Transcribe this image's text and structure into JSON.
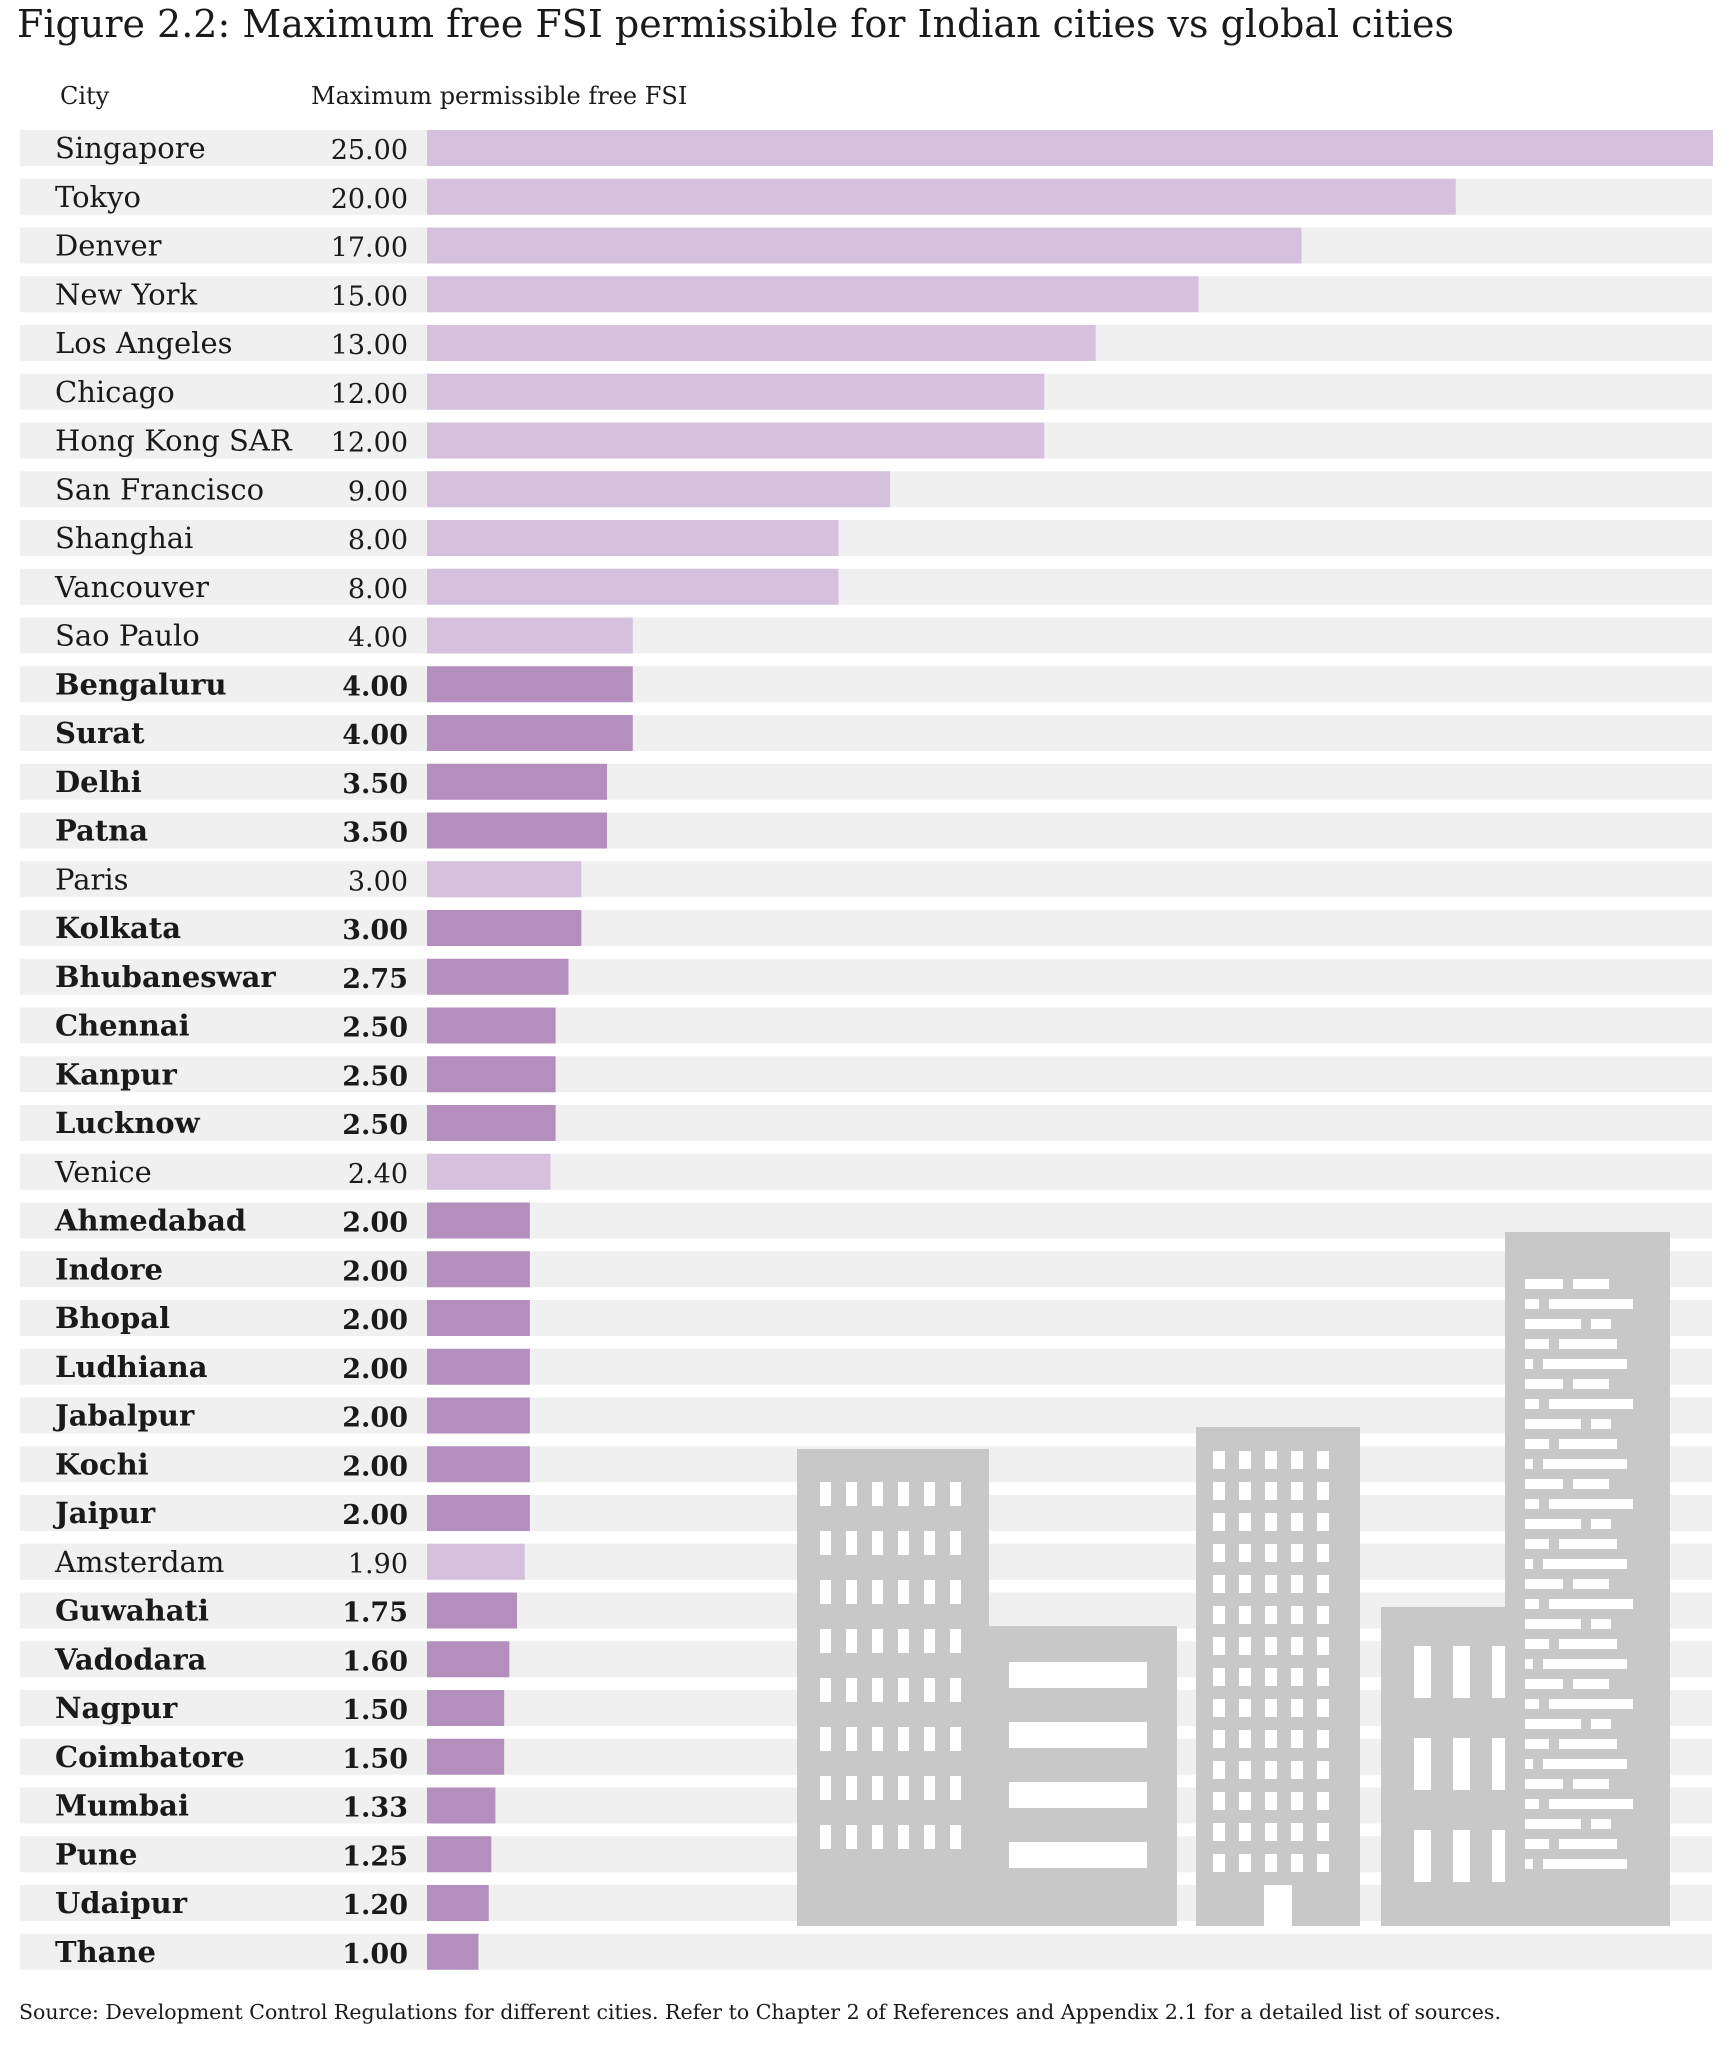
{
  "title": "Figure 2.2: Maximum free FSI permissible for Indian cities vs global cities",
  "column_headers": {
    "city": "City",
    "value": "Maximum permissible free FSI"
  },
  "source": "Source: Development Control Regulations for different cities. Refer to Chapter 2 of References and Appendix 2.1 for a detailed list of sources.",
  "colors": {
    "global_bar": "#d5c0de",
    "indian_bar": "#b48fbe",
    "row_band": "#f0f0f0",
    "buildings": "#c8c8c8"
  },
  "icons": [
    "city-skyline-icon"
  ],
  "chart_data": {
    "type": "bar",
    "orientation": "horizontal",
    "xlim": [
      0,
      25
    ],
    "categories": [
      "Singapore",
      "Tokyo",
      "Denver",
      "New York",
      "Los Angeles",
      "Chicago",
      "Hong Kong SAR",
      "San Francisco",
      "Shanghai",
      "Vancouver",
      "Sao Paulo",
      "Bengaluru",
      "Surat",
      "Delhi",
      "Patna",
      "Paris",
      "Kolkata",
      "Bhubaneswar",
      "Chennai",
      "Kanpur",
      "Lucknow",
      "Venice",
      "Ahmedabad",
      "Indore",
      "Bhopal",
      "Ludhiana",
      "Jabalpur",
      "Kochi",
      "Jaipur",
      "Amsterdam",
      "Guwahati",
      "Vadodara",
      "Nagpur",
      "Coimbatore",
      "Mumbai",
      "Pune",
      "Udaipur",
      "Thane"
    ],
    "values": [
      25,
      20,
      17,
      15,
      13,
      12,
      12,
      9,
      8,
      8,
      4,
      4,
      4,
      3.5,
      3.5,
      3,
      3,
      2.75,
      2.5,
      2.5,
      2.5,
      2.4,
      2,
      2,
      2,
      2,
      2,
      2,
      2,
      1.9,
      1.75,
      1.6,
      1.5,
      1.5,
      1.33,
      1.25,
      1.2,
      1
    ],
    "value_labels": [
      "25.00",
      "20.00",
      "17.00",
      "15.00",
      "13.00",
      "12.00",
      "12.00",
      "9.00",
      "8.00",
      "8.00",
      "4.00",
      "4.00",
      "4.00",
      "3.50",
      "3.50",
      "3.00",
      "3.00",
      "2.75",
      "2.50",
      "2.50",
      "2.50",
      "2.40",
      "2.00",
      "2.00",
      "2.00",
      "2.00",
      "2.00",
      "2.00",
      "2.00",
      "1.90",
      "1.75",
      "1.60",
      "1.50",
      "1.50",
      "1.33",
      "1.25",
      "1.20",
      "1.00"
    ],
    "is_indian": [
      false,
      false,
      false,
      false,
      false,
      false,
      false,
      false,
      false,
      false,
      false,
      true,
      true,
      true,
      true,
      false,
      true,
      true,
      true,
      true,
      true,
      false,
      true,
      true,
      true,
      true,
      true,
      true,
      true,
      false,
      true,
      true,
      true,
      true,
      true,
      true,
      true,
      true
    ]
  }
}
